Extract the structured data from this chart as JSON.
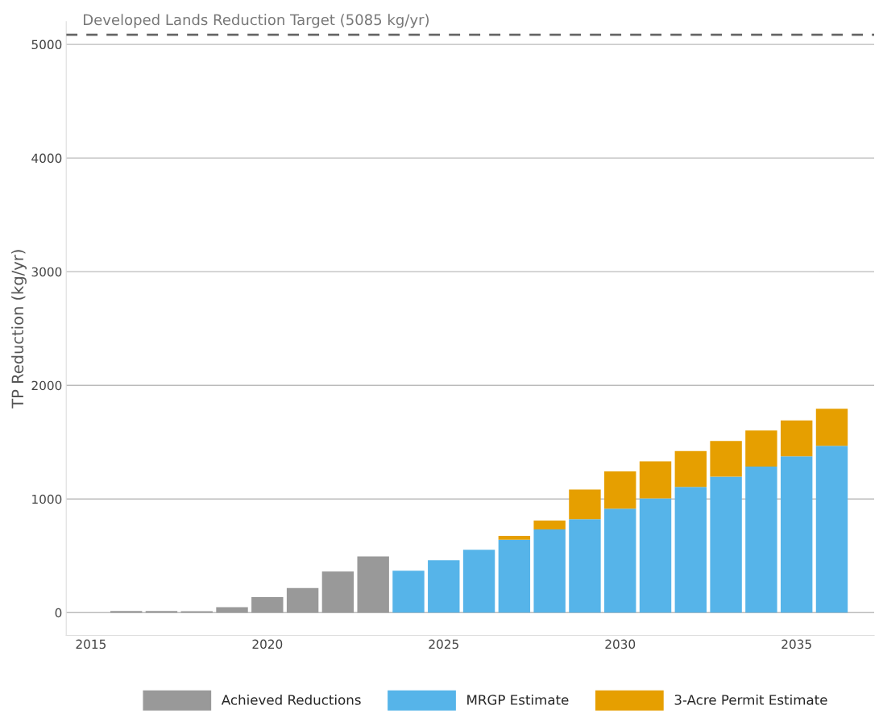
{
  "chart_data": {
    "type": "bar",
    "stacked": true,
    "ylabel": "TP Reduction (kg/yr)",
    "x": [
      2016,
      2017,
      2018,
      2019,
      2020,
      2021,
      2022,
      2023,
      2024,
      2025,
      2026,
      2027,
      2028,
      2029,
      2030,
      2031,
      2032,
      2033,
      2034,
      2035,
      2036
    ],
    "series": [
      {
        "name": "Achieved Reductions",
        "color": "#999999",
        "values": [
          14,
          14,
          12,
          48,
          137,
          216,
          362,
          494,
          null,
          null,
          null,
          null,
          null,
          null,
          null,
          null,
          null,
          null,
          null,
          null,
          null
        ]
      },
      {
        "name": "MRGP Estimate",
        "color": "#56b4e9",
        "values": [
          null,
          null,
          null,
          null,
          null,
          null,
          null,
          null,
          369,
          461,
          553,
          642,
          733,
          822,
          914,
          1006,
          1106,
          1197,
          1286,
          1375,
          1467
        ]
      },
      {
        "name": "3-Acre Permit Estimate",
        "color": "#e69f00",
        "values": [
          null,
          null,
          null,
          null,
          null,
          null,
          null,
          null,
          null,
          null,
          null,
          33,
          78,
          261,
          328,
          325,
          316,
          314,
          317,
          317,
          327
        ]
      }
    ],
    "xlim": [
      2014.3,
      2037.2
    ],
    "ylim": [
      -200,
      5200
    ],
    "xticks": [
      2015,
      2020,
      2025,
      2030,
      2035
    ],
    "yticks": [
      0,
      1000,
      2000,
      3000,
      4000,
      5000
    ],
    "grid": "y",
    "legend": "bottom",
    "ref_lines": [
      {
        "axis": "y",
        "value": 5085,
        "label": "Developed Lands Reduction Target (5085 kg/yr)",
        "color": "#666666",
        "line_style": "dashed"
      }
    ]
  }
}
